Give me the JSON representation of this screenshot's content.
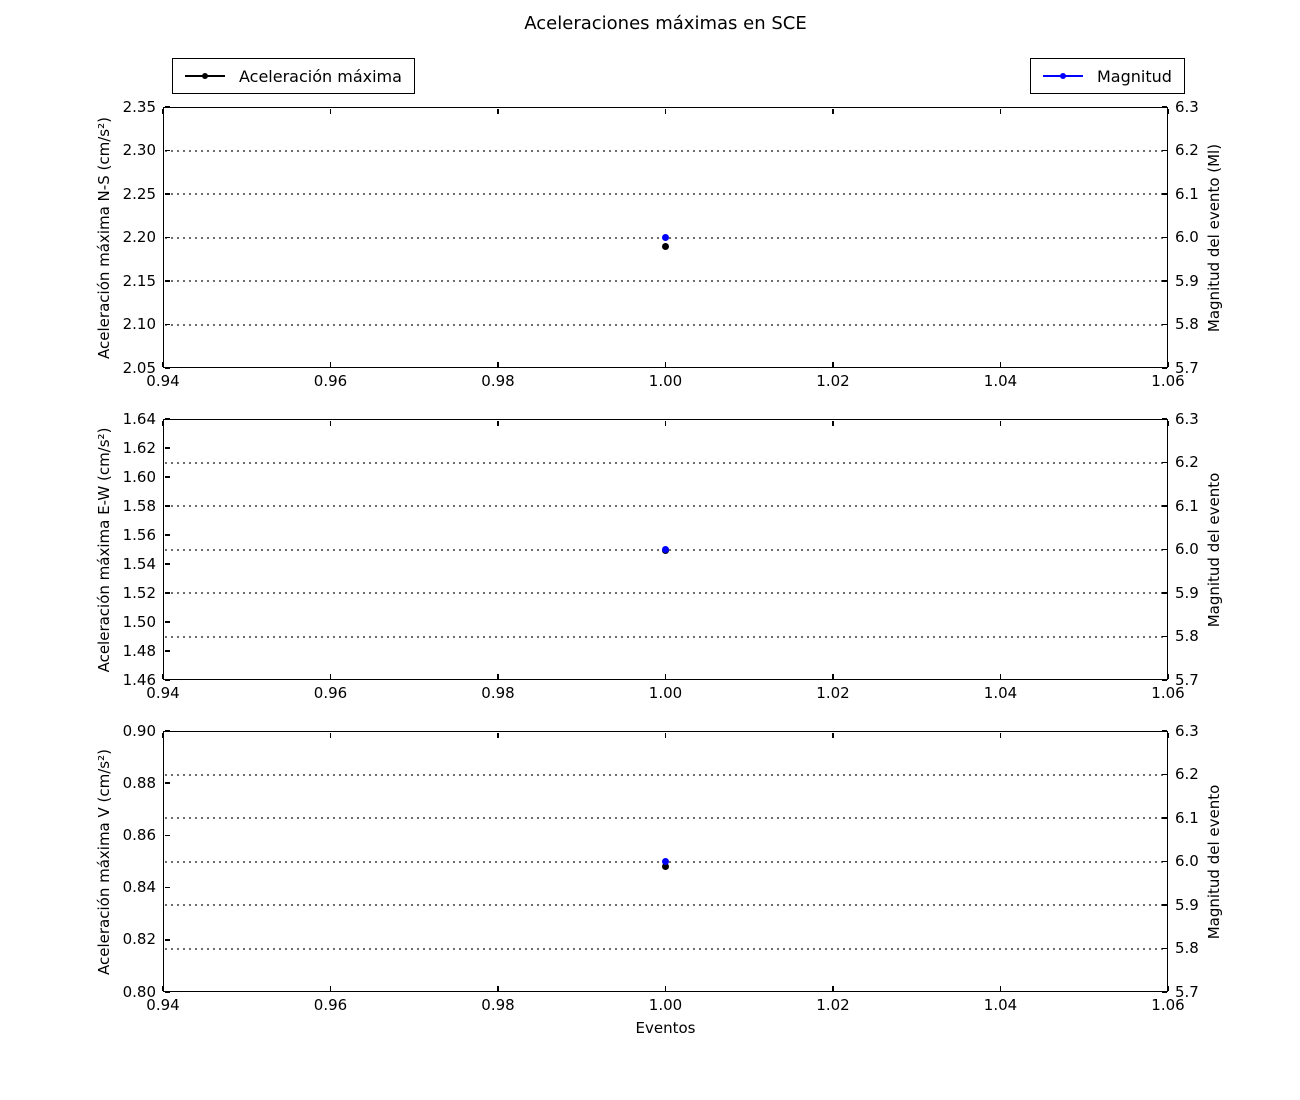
{
  "figure_title": "Aceleraciones máximas en SCE",
  "legend_left": {
    "label": "Aceleración máxima",
    "color": "#000000"
  },
  "legend_right": {
    "label": "Magnitud",
    "color": "#0000ff"
  },
  "xlabel": "Eventos",
  "chart_data": [
    {
      "type": "scatter",
      "ylabel_left": "Aceleración máxima N-S (cm/s²)",
      "ylabel_right": "Magnitud del evento (Ml)",
      "xlim": [
        0.94,
        1.06
      ],
      "xtick_labels": [
        "0.94",
        "0.96",
        "0.98",
        "1.00",
        "1.02",
        "1.04",
        "1.06"
      ],
      "ylim_left": [
        2.05,
        2.35
      ],
      "ytick_labels_left": [
        "2.05",
        "2.10",
        "2.15",
        "2.20",
        "2.25",
        "2.30",
        "2.35"
      ],
      "ylim_right": [
        5.7,
        6.3
      ],
      "ytick_labels_right": [
        "5.7",
        "5.8",
        "5.9",
        "6.0",
        "6.1",
        "6.2",
        "6.3"
      ],
      "grid_right": [
        5.8,
        5.9,
        6.0,
        6.1,
        6.2
      ],
      "grid_on": true,
      "series": [
        {
          "id": "aceleracion-maxima",
          "name": "Aceleración máxima",
          "axis": "left",
          "color": "#000000",
          "marker": "point",
          "x": [
            1.0
          ],
          "y": [
            2.19
          ]
        },
        {
          "id": "magnitud",
          "name": "Magnitud",
          "axis": "right",
          "color": "#0000ff",
          "marker": "point",
          "x": [
            1.0
          ],
          "y": [
            6.0
          ]
        }
      ]
    },
    {
      "type": "scatter",
      "ylabel_left": "Aceleración máxima E-W (cm/s²)",
      "ylabel_right": "Magnitud del evento",
      "xlim": [
        0.94,
        1.06
      ],
      "xtick_labels": [
        "0.94",
        "0.96",
        "0.98",
        "1.00",
        "1.02",
        "1.04",
        "1.06"
      ],
      "ylim_left": [
        1.46,
        1.64
      ],
      "ytick_labels_left": [
        "1.46",
        "1.48",
        "1.50",
        "1.52",
        "1.54",
        "1.56",
        "1.58",
        "1.60",
        "1.62",
        "1.64"
      ],
      "ylim_right": [
        5.7,
        6.3
      ],
      "ytick_labels_right": [
        "5.7",
        "5.8",
        "5.9",
        "6.0",
        "6.1",
        "6.2",
        "6.3"
      ],
      "grid_right": [
        5.8,
        5.9,
        6.0,
        6.1,
        6.2
      ],
      "grid_on": true,
      "series": [
        {
          "id": "aceleracion-maxima",
          "name": "Aceleración máxima",
          "axis": "left",
          "color": "#000000",
          "marker": "point",
          "x": [
            1.0
          ],
          "y": [
            1.549
          ]
        },
        {
          "id": "magnitud",
          "name": "Magnitud",
          "axis": "right",
          "color": "#0000ff",
          "marker": "point",
          "x": [
            1.0
          ],
          "y": [
            6.0
          ]
        }
      ]
    },
    {
      "type": "scatter",
      "ylabel_left": "Aceleración máxima V (cm/s²)",
      "ylabel_right": "Magnitud del evento",
      "xlim": [
        0.94,
        1.06
      ],
      "xtick_labels": [
        "0.94",
        "0.96",
        "0.98",
        "1.00",
        "1.02",
        "1.04",
        "1.06"
      ],
      "ylim_left": [
        0.8,
        0.9
      ],
      "ytick_labels_left": [
        "0.80",
        "0.82",
        "0.84",
        "0.86",
        "0.88",
        "0.90"
      ],
      "ylim_right": [
        5.7,
        6.3
      ],
      "ytick_labels_right": [
        "5.7",
        "5.8",
        "5.9",
        "6.0",
        "6.1",
        "6.2",
        "6.3"
      ],
      "grid_right": [
        5.8,
        5.9,
        6.0,
        6.1,
        6.2
      ],
      "grid_on": true,
      "series": [
        {
          "id": "aceleracion-maxima",
          "name": "Aceleración máxima",
          "axis": "left",
          "color": "#000000",
          "marker": "point",
          "x": [
            1.0
          ],
          "y": [
            0.848
          ]
        },
        {
          "id": "magnitud",
          "name": "Magnitud",
          "axis": "right",
          "color": "#0000ff",
          "marker": "point",
          "x": [
            1.0
          ],
          "y": [
            6.0
          ]
        }
      ]
    }
  ]
}
